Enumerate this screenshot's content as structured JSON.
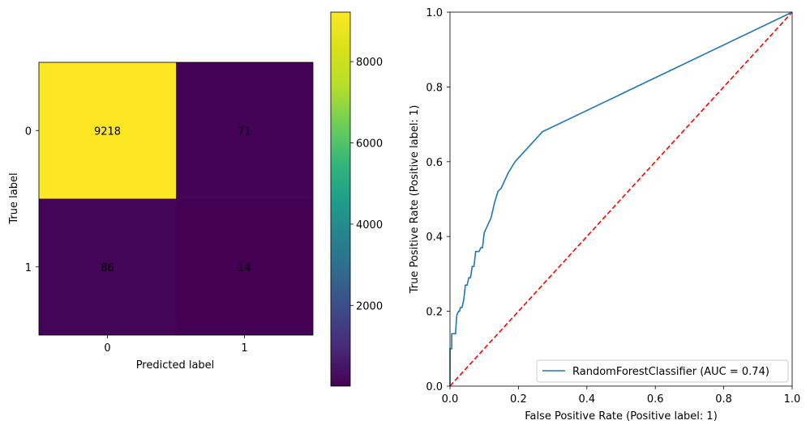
{
  "chart_data": [
    {
      "type": "heatmap",
      "subtype": "confusion-matrix",
      "xlabel": "Predicted label",
      "ylabel": "True label",
      "x_categories": [
        "0",
        "1"
      ],
      "y_categories": [
        "0",
        "1"
      ],
      "values": [
        [
          9218,
          71
        ],
        [
          86,
          14
        ]
      ],
      "colormap": "viridis",
      "text_color": "#fde725",
      "colorbar": {
        "range": [
          14,
          9218
        ],
        "ticks": [
          2000,
          4000,
          6000,
          8000
        ],
        "tick_labels": [
          "2000",
          "4000",
          "6000",
          "8000"
        ]
      }
    },
    {
      "type": "line",
      "subtype": "roc-curve",
      "xlabel": "False Positive Rate (Positive label: 1)",
      "ylabel": "True Positive Rate (Positive label: 1)",
      "xlim": [
        0.0,
        1.0
      ],
      "ylim": [
        0.0,
        1.0
      ],
      "xticks": [
        "0.0",
        "0.2",
        "0.4",
        "0.6",
        "0.8",
        "1.0"
      ],
      "yticks": [
        "0.0",
        "0.2",
        "0.4",
        "0.6",
        "0.8",
        "1.0"
      ],
      "grid": false,
      "legend": {
        "position": "lower-right"
      },
      "series": [
        {
          "name": "RandomForestClassifier (AUC = 0.74)",
          "color": "#1f77b4",
          "style": "solid",
          "x": [
            0.0,
            0.0,
            0.005,
            0.005,
            0.012,
            0.016,
            0.02,
            0.025,
            0.028,
            0.03,
            0.035,
            0.04,
            0.045,
            0.05,
            0.055,
            0.06,
            0.065,
            0.07,
            0.075,
            0.08,
            0.085,
            0.09,
            0.095,
            0.1,
            0.11,
            0.12,
            0.13,
            0.14,
            0.15,
            0.17,
            0.19,
            0.27,
            1.0
          ],
          "y": [
            0.0,
            0.1,
            0.1,
            0.14,
            0.14,
            0.14,
            0.19,
            0.2,
            0.2,
            0.21,
            0.21,
            0.23,
            0.27,
            0.27,
            0.29,
            0.29,
            0.32,
            0.32,
            0.36,
            0.36,
            0.36,
            0.37,
            0.37,
            0.41,
            0.43,
            0.45,
            0.49,
            0.52,
            0.53,
            0.57,
            0.6,
            0.68,
            1.0
          ]
        },
        {
          "name": "",
          "color": "#ff0000",
          "style": "dashed",
          "x": [
            0.0,
            1.0
          ],
          "y": [
            0.0,
            1.0
          ]
        }
      ]
    }
  ]
}
